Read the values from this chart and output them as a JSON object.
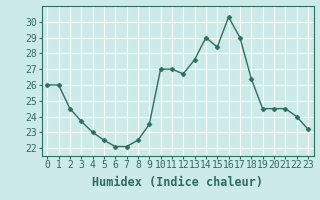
{
  "x": [
    0,
    1,
    2,
    3,
    4,
    5,
    6,
    7,
    8,
    9,
    10,
    11,
    12,
    13,
    14,
    15,
    16,
    17,
    18,
    19,
    20,
    21,
    22,
    23
  ],
  "y": [
    26.0,
    26.0,
    24.5,
    23.7,
    23.0,
    22.5,
    22.1,
    22.1,
    22.5,
    23.5,
    27.0,
    27.0,
    26.7,
    27.6,
    29.0,
    28.4,
    30.3,
    29.0,
    26.4,
    24.5,
    24.5,
    24.5,
    24.0,
    23.2
  ],
  "xlabel": "Humidex (Indice chaleur)",
  "xlim": [
    -0.5,
    23.5
  ],
  "ylim": [
    21.5,
    31.0
  ],
  "yticks": [
    22,
    23,
    24,
    25,
    26,
    27,
    28,
    29,
    30
  ],
  "xticks": [
    0,
    1,
    2,
    3,
    4,
    5,
    6,
    7,
    8,
    9,
    10,
    11,
    12,
    13,
    14,
    15,
    16,
    17,
    18,
    19,
    20,
    21,
    22,
    23
  ],
  "xtick_labels": [
    "0",
    "1",
    "2",
    "3",
    "4",
    "5",
    "6",
    "7",
    "8",
    "9",
    "10",
    "11",
    "12",
    "13",
    "14",
    "15",
    "16",
    "17",
    "18",
    "19",
    "20",
    "21",
    "22",
    "23"
  ],
  "line_color": "#2d6e5e",
  "marker": "D",
  "marker_size": 2.5,
  "bg_color": "#cceae8",
  "grid_color": "#ffffff",
  "xlabel_fontsize": 8.5,
  "tick_fontsize": 7.0,
  "xlabel_fontweight": "bold"
}
